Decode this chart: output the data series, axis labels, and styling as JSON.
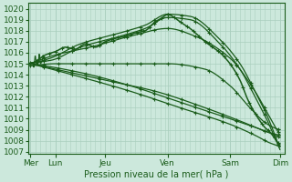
{
  "title": "Pression niveau de la mer( hPa )",
  "bg_color": "#cce8dc",
  "grid_color": "#aacfbe",
  "line_color": "#1a5c1a",
  "x_labels": [
    "Mer",
    "Lun",
    "Jeu",
    "Ven",
    "Sam",
    "Dim"
  ],
  "ylim": [
    1006.8,
    1020.5
  ],
  "yticks": [
    1007,
    1008,
    1009,
    1010,
    1011,
    1012,
    1013,
    1014,
    1015,
    1016,
    1017,
    1018,
    1019,
    1020
  ],
  "line_width": 0.9,
  "marker": "+",
  "marker_size": 2.5,
  "x_day_positions": [
    0,
    0.5,
    1.5,
    2.75,
    4.0,
    5.0
  ]
}
